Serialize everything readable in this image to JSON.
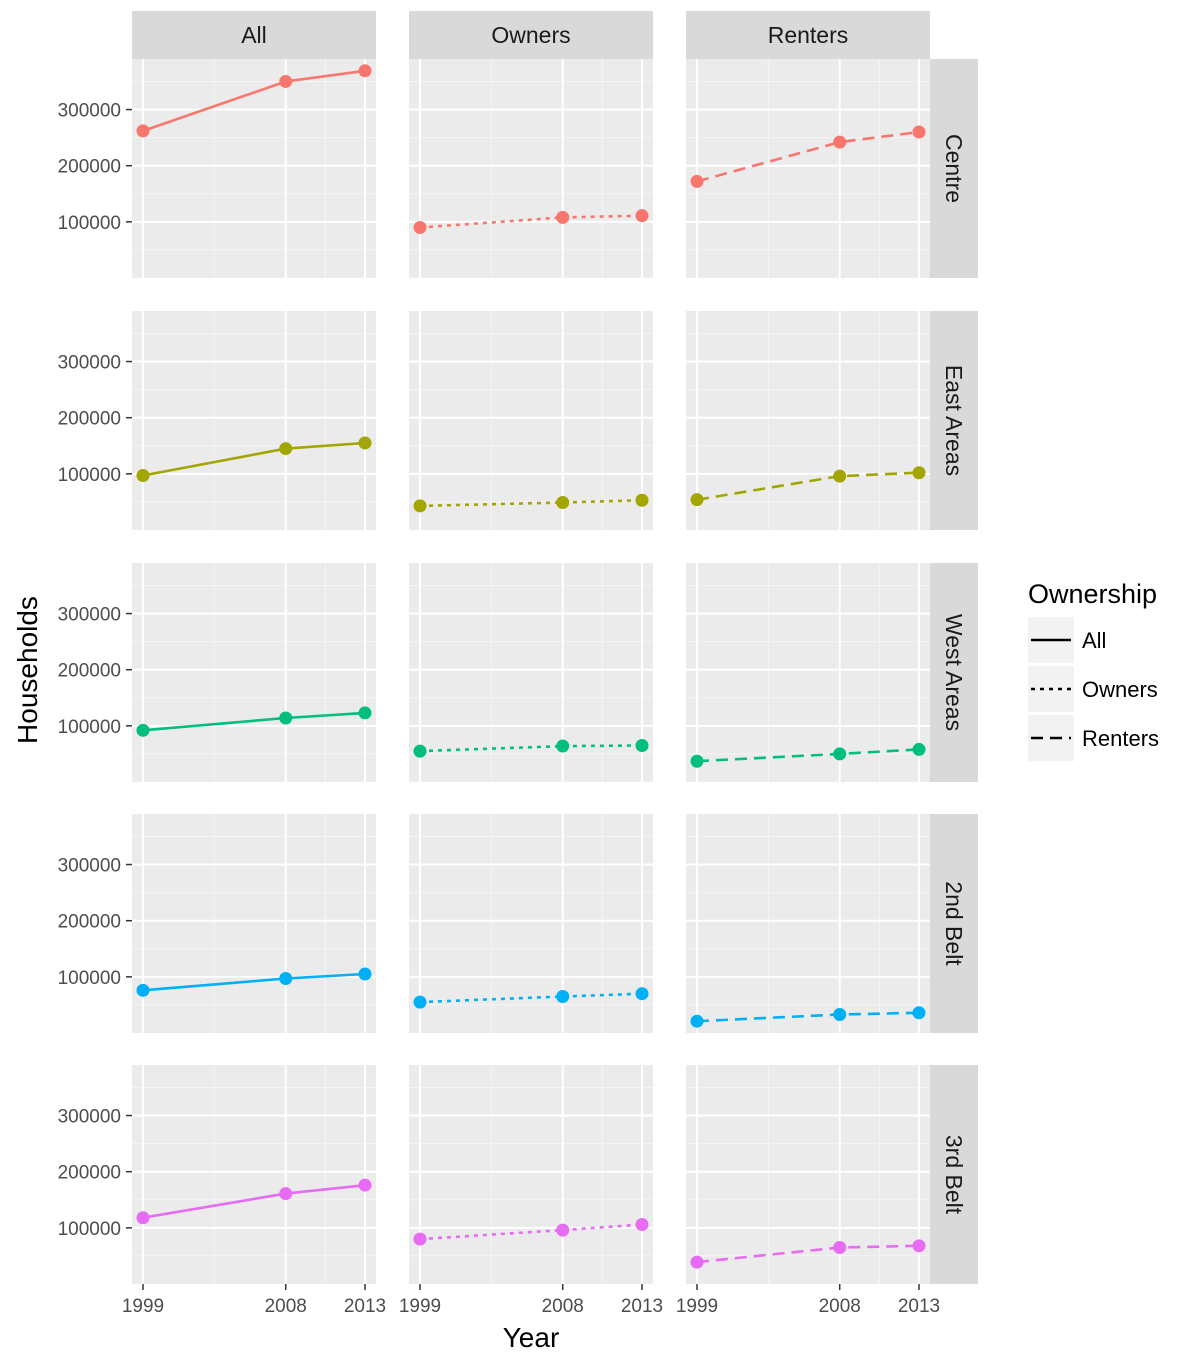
{
  "chart_data": {
    "type": "line",
    "xlabel": "Year",
    "ylabel": "Households",
    "x": [
      1999,
      2008,
      2013
    ],
    "x_ticks": [
      "1999",
      "2008",
      "2013"
    ],
    "ylim": [
      0,
      390000
    ],
    "y_ticks": [
      "100000",
      "200000",
      "300000"
    ],
    "grid": true,
    "columns": [
      "All",
      "Owners",
      "Renters"
    ],
    "rows": [
      "Centre",
      "East Areas",
      "West Areas",
      "2nd Belt",
      "3rd Belt"
    ],
    "row_colors": [
      "#F8766D",
      "#A3A500",
      "#00BF7D",
      "#00B0F6",
      "#E76BF3"
    ],
    "legend": {
      "title": "Ownership",
      "placement": "right",
      "entries": [
        {
          "label": "All",
          "linetype": "solid"
        },
        {
          "label": "Owners",
          "linetype": "dotted"
        },
        {
          "label": "Renters",
          "linetype": "dashed"
        }
      ]
    },
    "series": [
      {
        "region": "Centre",
        "ownership": "All",
        "values": [
          262000,
          350000,
          369000
        ]
      },
      {
        "region": "Centre",
        "ownership": "Owners",
        "values": [
          90000,
          108000,
          111000
        ]
      },
      {
        "region": "Centre",
        "ownership": "Renters",
        "values": [
          172000,
          242000,
          260000
        ]
      },
      {
        "region": "East Areas",
        "ownership": "All",
        "values": [
          97000,
          145000,
          155000
        ]
      },
      {
        "region": "East Areas",
        "ownership": "Owners",
        "values": [
          43000,
          49000,
          53000
        ]
      },
      {
        "region": "East Areas",
        "ownership": "Renters",
        "values": [
          54000,
          96000,
          102000
        ]
      },
      {
        "region": "West Areas",
        "ownership": "All",
        "values": [
          92000,
          114000,
          123000
        ]
      },
      {
        "region": "West Areas",
        "ownership": "Owners",
        "values": [
          55000,
          64000,
          65000
        ]
      },
      {
        "region": "West Areas",
        "ownership": "Renters",
        "values": [
          37000,
          50000,
          58000
        ]
      },
      {
        "region": "2nd Belt",
        "ownership": "All",
        "values": [
          76000,
          97000,
          105000
        ]
      },
      {
        "region": "2nd Belt",
        "ownership": "Owners",
        "values": [
          55000,
          65000,
          70000
        ]
      },
      {
        "region": "2nd Belt",
        "ownership": "Renters",
        "values": [
          21000,
          33000,
          36000
        ]
      },
      {
        "region": "3rd Belt",
        "ownership": "All",
        "values": [
          118000,
          161000,
          176000
        ]
      },
      {
        "region": "3rd Belt",
        "ownership": "Owners",
        "values": [
          80000,
          96000,
          106000
        ]
      },
      {
        "region": "3rd Belt",
        "ownership": "Renters",
        "values": [
          39000,
          65000,
          68000
        ]
      }
    ]
  }
}
